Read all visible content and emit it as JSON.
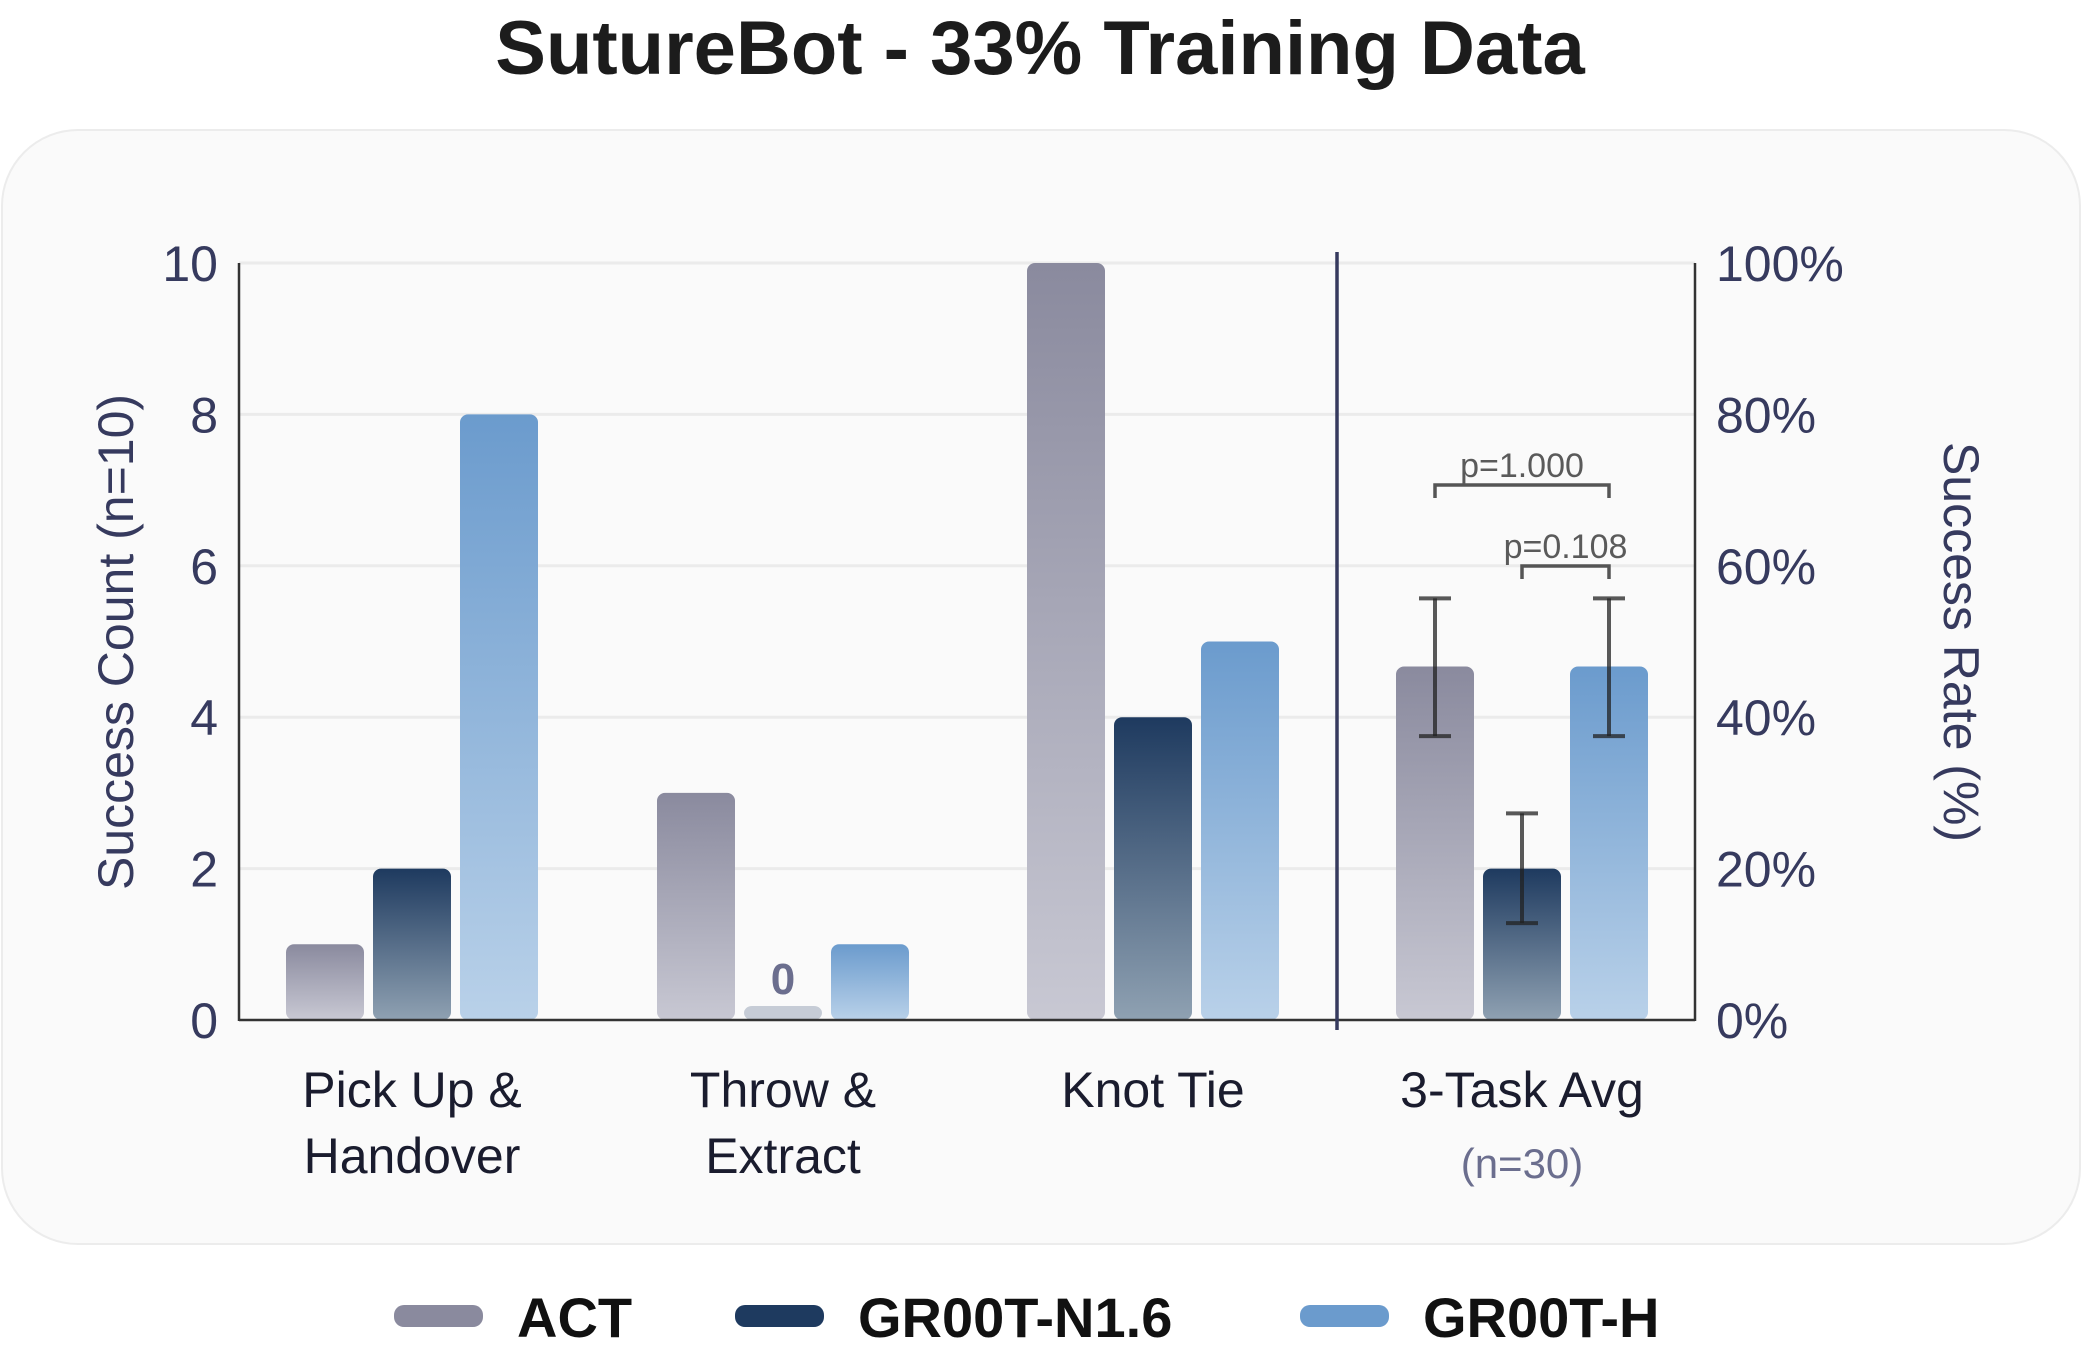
{
  "title": "SutureBot - 33% Training Data",
  "chart_data": {
    "type": "bar",
    "title": "SutureBot - 33% Training Data",
    "categories": [
      "Pick Up & Handover",
      "Throw & Extract",
      "Knot Tie",
      "3-Task Avg"
    ],
    "category_lines": [
      [
        "Pick Up &",
        "Handover"
      ],
      [
        "Throw &",
        "Extract"
      ],
      [
        "Knot Tie"
      ],
      [
        "3-Task Avg"
      ]
    ],
    "category_sublabels": [
      "",
      "",
      "",
      "(n=30)"
    ],
    "series": [
      {
        "name": "ACT",
        "values": [
          1,
          3,
          10,
          4.67
        ],
        "error": [
          null,
          null,
          null,
          [
            3.75,
            5.57
          ]
        ],
        "color_top": "#8a8a9e",
        "color_bottom": "#c8c8d3"
      },
      {
        "name": "GR00T-N1.6",
        "values": [
          2,
          0,
          4,
          2.0
        ],
        "error": [
          null,
          null,
          null,
          [
            1.28,
            2.73
          ]
        ],
        "color_top": "#1e3a5f",
        "color_bottom": "#8fa1b2"
      },
      {
        "name": "GR00T-H",
        "values": [
          8,
          1,
          5,
          4.67
        ],
        "error": [
          null,
          null,
          null,
          [
            3.75,
            5.57
          ]
        ],
        "color_top": "#6b9bcd",
        "color_bottom": "#b9d1e9"
      }
    ],
    "xlabel": "",
    "ylabel": "Success Count (n=10)",
    "ylabel_right": "Success Rate (%)",
    "ylim": [
      0,
      10
    ],
    "yticks": [
      "0",
      "2",
      "4",
      "6",
      "8",
      "10"
    ],
    "yticks_right": [
      "0%",
      "20%",
      "40%",
      "60%",
      "80%",
      "100%"
    ],
    "annotations": [
      {
        "text": "0",
        "category": "Throw & Extract",
        "series": "GR00T-N1.6"
      },
      {
        "text": "p=1.000",
        "between": [
          "ACT",
          "GR00T-H"
        ],
        "category": "3-Task Avg"
      },
      {
        "text": "p=0.108",
        "between": [
          "GR00T-N1.6",
          "GR00T-H"
        ],
        "category": "3-Task Avg"
      }
    ],
    "grid": true,
    "legend_position": "bottom"
  },
  "legend": [
    {
      "label": "ACT",
      "color": "#8a8a9e"
    },
    {
      "label": "GR00T-N1.6",
      "color": "#1e3a5f"
    },
    {
      "label": "GR00T-H",
      "color": "#6b9bcd"
    }
  ]
}
